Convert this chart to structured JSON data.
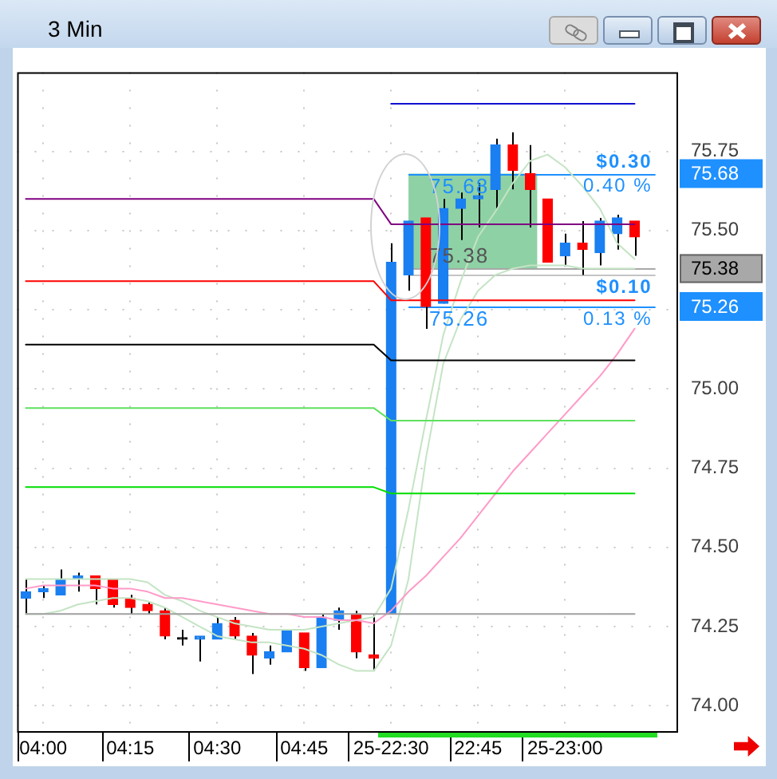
{
  "chart_data": {
    "type": "candlestick",
    "title": "3 Min",
    "categories": [
      null,
      "04:00",
      null,
      null,
      null,
      null,
      "04:15",
      null,
      null,
      null,
      null,
      "04:30",
      null,
      null,
      null,
      null,
      "04:45",
      null,
      null,
      null,
      null,
      "25-22:30",
      null,
      null,
      null,
      null,
      "22:45",
      null,
      null,
      null,
      null,
      "25-23:00",
      null,
      null,
      null,
      null,
      null,
      null
    ],
    "ohlc": [
      [
        74.34,
        74.4,
        74.29,
        74.36
      ],
      [
        74.36,
        74.38,
        74.34,
        74.37
      ],
      [
        74.35,
        74.43,
        74.35,
        74.4
      ],
      [
        74.4,
        74.42,
        74.36,
        74.41
      ],
      [
        74.41,
        74.41,
        74.32,
        74.37
      ],
      [
        74.4,
        74.4,
        74.31,
        74.32
      ],
      [
        74.34,
        74.35,
        74.29,
        74.31
      ],
      [
        74.32,
        74.33,
        74.29,
        74.3
      ],
      [
        74.3,
        74.31,
        74.21,
        74.22
      ],
      [
        74.21,
        74.24,
        74.19,
        74.21
      ],
      [
        74.21,
        74.22,
        74.14,
        74.22
      ],
      [
        74.21,
        74.28,
        74.21,
        74.26
      ],
      [
        74.27,
        74.28,
        74.21,
        74.22
      ],
      [
        74.22,
        74.23,
        74.1,
        74.16
      ],
      [
        74.15,
        74.19,
        74.13,
        74.17
      ],
      [
        74.17,
        74.24,
        74.17,
        74.24
      ],
      [
        74.23,
        74.23,
        74.11,
        74.12
      ],
      [
        74.12,
        74.29,
        74.12,
        74.28
      ],
      [
        74.27,
        74.31,
        74.24,
        74.3
      ],
      [
        74.29,
        74.3,
        74.15,
        74.17
      ],
      [
        74.16,
        74.29,
        74.11,
        74.15
      ],
      [
        74.29,
        75.46,
        74.29,
        75.4
      ],
      [
        75.36,
        75.53,
        75.31,
        75.53
      ],
      [
        75.54,
        75.54,
        75.19,
        75.26
      ],
      [
        75.27,
        75.6,
        75.27,
        75.57
      ],
      [
        75.57,
        75.62,
        75.47,
        75.6
      ],
      [
        75.6,
        75.65,
        75.51,
        75.61
      ],
      [
        75.63,
        75.79,
        75.57,
        75.77
      ],
      [
        75.77,
        75.81,
        75.63,
        75.69
      ],
      [
        75.68,
        75.77,
        75.51,
        75.63
      ],
      [
        75.6,
        75.6,
        75.4,
        75.4
      ],
      [
        75.42,
        75.49,
        75.39,
        75.46
      ],
      [
        75.46,
        75.53,
        75.36,
        75.44
      ],
      [
        75.43,
        75.54,
        75.39,
        75.53
      ],
      [
        75.49,
        75.55,
        75.44,
        75.54
      ],
      [
        75.53,
        75.53,
        75.42,
        75.48
      ],
      null,
      null
    ],
    "colors": [
      "#1a7ff0",
      "#1a7ff0",
      "#1a7ff0",
      "#1a7ff0",
      "#ff0000",
      "#ff0000",
      "#ff0000",
      "#ff0000",
      "#ff0000",
      "#000000",
      "#1a7ff0",
      "#1a7ff0",
      "#ff0000",
      "#ff0000",
      "#1a7ff0",
      "#1a7ff0",
      "#ff0000",
      "#1a7ff0",
      "#1a7ff0",
      "#ff0000",
      "#ff0000",
      "#1a7ff0",
      "#1a7ff0",
      "#ff0000",
      "#1a7ff0",
      "#1a7ff0",
      "#1a7ff0",
      "#1a7ff0",
      "#ff0000",
      "#ff0000",
      "#ff0000",
      "#1a7ff0",
      "#ff0000",
      "#1a7ff0",
      "#1a7ff0",
      "#ff0000",
      null,
      null
    ],
    "series": [
      {
        "type": "line",
        "color": "#1010d0",
        "values": [
          null,
          null,
          null,
          null,
          null,
          null,
          null,
          null,
          null,
          null,
          null,
          null,
          null,
          null,
          null,
          null,
          null,
          null,
          null,
          null,
          null,
          75.9,
          75.9,
          75.9,
          75.9,
          75.9,
          75.9,
          75.9,
          75.9,
          75.9,
          75.9,
          75.9,
          75.9,
          75.9,
          75.9,
          75.9,
          null,
          null
        ]
      },
      {
        "type": "line",
        "color": "#800080",
        "values": [
          75.6,
          75.6,
          75.6,
          75.6,
          75.6,
          75.6,
          75.6,
          75.6,
          75.6,
          75.6,
          75.6,
          75.6,
          75.6,
          75.6,
          75.6,
          75.6,
          75.6,
          75.6,
          75.6,
          75.6,
          75.6,
          75.52,
          75.52,
          75.52,
          75.52,
          75.52,
          75.52,
          75.52,
          75.52,
          75.52,
          75.52,
          75.52,
          75.52,
          75.52,
          75.52,
          75.52,
          null,
          null
        ]
      },
      {
        "type": "line",
        "color": "#ff0000",
        "values": [
          75.34,
          75.34,
          75.34,
          75.34,
          75.34,
          75.34,
          75.34,
          75.34,
          75.34,
          75.34,
          75.34,
          75.34,
          75.34,
          75.34,
          75.34,
          75.34,
          75.34,
          75.34,
          75.34,
          75.34,
          75.34,
          75.28,
          75.28,
          75.28,
          75.28,
          75.28,
          75.28,
          75.28,
          75.28,
          75.28,
          75.28,
          75.28,
          75.28,
          75.28,
          75.28,
          75.28,
          null,
          null
        ]
      },
      {
        "type": "line",
        "color": "#000000",
        "values": [
          75.14,
          75.14,
          75.14,
          75.14,
          75.14,
          75.14,
          75.14,
          75.14,
          75.14,
          75.14,
          75.14,
          75.14,
          75.14,
          75.14,
          75.14,
          75.14,
          75.14,
          75.14,
          75.14,
          75.14,
          75.14,
          75.09,
          75.09,
          75.09,
          75.09,
          75.09,
          75.09,
          75.09,
          75.09,
          75.09,
          75.09,
          75.09,
          75.09,
          75.09,
          75.09,
          75.09,
          null,
          null
        ]
      },
      {
        "type": "line",
        "color": "#5ee05e",
        "values": [
          74.94,
          74.94,
          74.94,
          74.94,
          74.94,
          74.94,
          74.94,
          74.94,
          74.94,
          74.94,
          74.94,
          74.94,
          74.94,
          74.94,
          74.94,
          74.94,
          74.94,
          74.94,
          74.94,
          74.94,
          74.94,
          74.9,
          74.9,
          74.9,
          74.9,
          74.9,
          74.9,
          74.9,
          74.9,
          74.9,
          74.9,
          74.9,
          74.9,
          74.9,
          74.9,
          74.9,
          null,
          null
        ]
      },
      {
        "type": "line",
        "color": "#00dd00",
        "values": [
          74.69,
          74.69,
          74.69,
          74.69,
          74.69,
          74.69,
          74.69,
          74.69,
          74.69,
          74.69,
          74.69,
          74.69,
          74.69,
          74.69,
          74.69,
          74.69,
          74.69,
          74.69,
          74.69,
          74.69,
          74.69,
          74.67,
          74.67,
          74.67,
          74.67,
          74.67,
          74.67,
          74.67,
          74.67,
          74.67,
          74.67,
          74.67,
          74.67,
          74.67,
          74.67,
          74.67,
          null,
          null
        ]
      },
      {
        "type": "line",
        "color": "#a0a0a0",
        "values": [
          74.29,
          74.29,
          74.29,
          74.29,
          74.29,
          74.29,
          74.29,
          74.29,
          74.29,
          74.29,
          74.29,
          74.29,
          74.29,
          74.29,
          74.29,
          74.29,
          74.29,
          74.29,
          74.29,
          74.29,
          74.29,
          74.29,
          74.29,
          74.29,
          74.29,
          74.29,
          74.29,
          74.29,
          74.29,
          74.29,
          74.29,
          74.29,
          74.29,
          74.29,
          74.29,
          74.29,
          null,
          null
        ]
      },
      {
        "type": "line",
        "color": "#ff9ac8",
        "values": [
          74.37,
          74.38,
          74.38,
          74.38,
          74.38,
          74.37,
          74.37,
          74.36,
          74.34,
          74.34,
          74.33,
          74.32,
          74.31,
          74.3,
          74.29,
          74.29,
          74.28,
          74.28,
          74.27,
          74.27,
          74.26,
          74.3,
          74.36,
          74.41,
          74.47,
          74.53,
          74.6,
          74.67,
          74.74,
          74.8,
          74.86,
          74.92,
          74.98,
          75.04,
          75.11,
          75.19,
          null,
          null
        ]
      },
      {
        "type": "line",
        "color": "#c4e4c4",
        "values": [
          74.4,
          74.4,
          74.4,
          74.4,
          74.4,
          74.4,
          74.4,
          74.39,
          74.35,
          74.33,
          74.3,
          74.28,
          74.26,
          74.25,
          74.24,
          74.24,
          74.24,
          74.25,
          74.26,
          74.27,
          74.28,
          74.37,
          74.62,
          74.9,
          75.17,
          75.34,
          75.48,
          75.56,
          75.65,
          75.72,
          75.74,
          75.7,
          75.64,
          75.57,
          75.46,
          75.41,
          null,
          null
        ]
      },
      {
        "type": "line",
        "color": "#c4e4c4",
        "values": [
          74.29,
          74.29,
          74.3,
          74.32,
          74.33,
          74.34,
          74.34,
          74.33,
          74.31,
          74.28,
          74.25,
          74.22,
          74.21,
          74.2,
          74.2,
          74.19,
          74.18,
          74.16,
          74.13,
          74.11,
          74.11,
          74.19,
          74.4,
          74.78,
          75.08,
          75.22,
          75.31,
          75.36,
          75.38,
          75.39,
          75.39,
          75.39,
          75.38,
          75.38,
          75.38,
          75.38,
          null,
          null
        ]
      }
    ],
    "ylim": [
      73.92,
      76.0
    ],
    "yticks": [
      {
        "value": 74,
        "label": "74.00"
      },
      {
        "value": 74.25,
        "label": "74.25"
      },
      {
        "value": 74.5,
        "label": "74.50"
      },
      {
        "value": 74.75,
        "label": "74.75"
      },
      {
        "value": 75,
        "label": "75.00"
      },
      {
        "value": 75.25,
        "label": null
      },
      {
        "value": 75.5,
        "label": "75.50"
      },
      {
        "value": 75.75,
        "label": "75.75"
      }
    ],
    "grid": true,
    "bands": [
      {
        "axis": "y",
        "from": 75.38,
        "to": 75.68,
        "color": "#8ed1a5"
      }
    ],
    "ref_lines": [
      {
        "axis": "y",
        "value": 75.68,
        "label": "75.68",
        "color": "#1e90ff"
      },
      {
        "axis": "y",
        "value": 75.38,
        "label": "75.38",
        "color": "#a8a8a8"
      },
      {
        "axis": "y",
        "value": 75.36,
        "label": null,
        "color": "#c4c4c4"
      },
      {
        "axis": "y",
        "value": 75.26,
        "label": "75.26",
        "color": "#1e90ff"
      }
    ],
    "annotations": [
      {
        "text": "$0.30",
        "y": 75.68
      },
      {
        "text": "0.40 %",
        "y": 75.68
      },
      {
        "text": "$0.10",
        "y": 75.26
      },
      {
        "text": "0.13 %",
        "y": 75.26
      }
    ]
  }
}
